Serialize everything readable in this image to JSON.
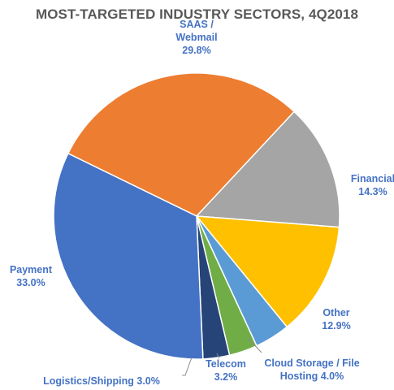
{
  "chart_data": {
    "type": "pie",
    "title": "MOST-TARGETED INDUSTRY SECTORS, 4Q2018",
    "slices": [
      {
        "name": "SAAS / Webmail",
        "label_lines": [
          "SAAS /",
          "Webmail",
          "29.8%"
        ],
        "value": 29.8,
        "color": "#ED7D31",
        "label_color": "#4472C4"
      },
      {
        "name": "Financial",
        "label_lines": [
          "Financial",
          "14.3%"
        ],
        "value": 14.3,
        "color": "#A5A5A5",
        "label_color": "#4472C4"
      },
      {
        "name": "Other",
        "label_lines": [
          "Other",
          "12.9%"
        ],
        "value": 12.9,
        "color": "#FFC000",
        "label_color": "#4472C4"
      },
      {
        "name": "Cloud Storage / File Hosting",
        "label_lines": [
          "Cloud Storage / File",
          "Hosting  4.0%"
        ],
        "value": 4.0,
        "color": "#5B9BD5",
        "label_color": "#4472C4"
      },
      {
        "name": "Telecom",
        "label_lines": [
          "Telecom",
          "3.2%"
        ],
        "value": 3.2,
        "color": "#70AD47",
        "label_color": "#4472C4"
      },
      {
        "name": "Logistics/Shipping",
        "label_lines": [
          "Logistics/Shipping 3.0%"
        ],
        "value": 3.0,
        "color": "#264478",
        "label_color": "#4472C4"
      },
      {
        "name": "Payment",
        "label_lines": [
          "Payment",
          "33.0%"
        ],
        "value": 33.0,
        "color": "#4472C4",
        "label_color": "#4472C4"
      }
    ],
    "legend": "none",
    "data_labels": "outside with leader lines"
  }
}
